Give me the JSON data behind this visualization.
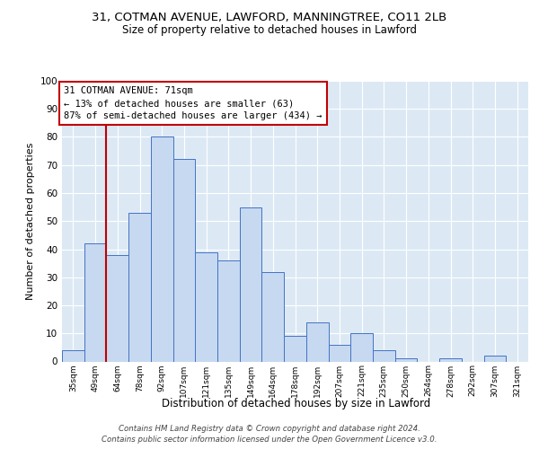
{
  "title1": "31, COTMAN AVENUE, LAWFORD, MANNINGTREE, CO11 2LB",
  "title2": "Size of property relative to detached houses in Lawford",
  "xlabel": "Distribution of detached houses by size in Lawford",
  "ylabel": "Number of detached properties",
  "categories": [
    "35sqm",
    "49sqm",
    "64sqm",
    "78sqm",
    "92sqm",
    "107sqm",
    "121sqm",
    "135sqm",
    "149sqm",
    "164sqm",
    "178sqm",
    "192sqm",
    "207sqm",
    "221sqm",
    "235sqm",
    "250sqm",
    "264sqm",
    "278sqm",
    "292sqm",
    "307sqm",
    "321sqm"
  ],
  "values": [
    4,
    42,
    38,
    53,
    80,
    72,
    39,
    36,
    55,
    32,
    9,
    14,
    6,
    10,
    4,
    1,
    0,
    1,
    0,
    2,
    0
  ],
  "bar_color": "#c6d9f0",
  "bar_edge_color": "#4472c4",
  "vline_index": 2,
  "vline_color": "#c00000",
  "annotation_line1": "31 COTMAN AVENUE: 71sqm",
  "annotation_line2": "← 13% of detached houses are smaller (63)",
  "annotation_line3": "87% of semi-detached houses are larger (434) →",
  "annotation_box_color": "#ffffff",
  "annotation_box_edge": "#c00000",
  "ylim": [
    0,
    100
  ],
  "yticks": [
    0,
    10,
    20,
    30,
    40,
    50,
    60,
    70,
    80,
    90,
    100
  ],
  "background_color": "#dce9f5",
  "grid_color": "#ffffff",
  "footer": "Contains HM Land Registry data © Crown copyright and database right 2024.\nContains public sector information licensed under the Open Government Licence v3.0."
}
